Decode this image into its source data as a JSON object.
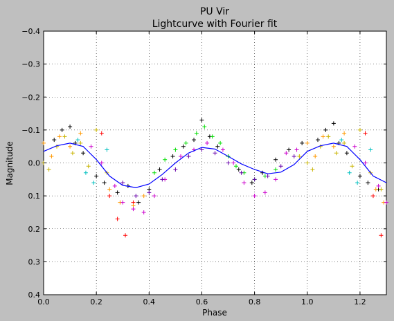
{
  "chart_data": {
    "type": "scatter",
    "title": "PU Vir",
    "subtitle": "Lightcurve with Fourier fit",
    "xlabel": "Phase",
    "ylabel": "Magnitude",
    "xlim": [
      0.0,
      1.3
    ],
    "ylim": [
      -0.4,
      0.4
    ],
    "y_inverted": true,
    "x_ticks": [
      0.0,
      0.2,
      0.4,
      0.6,
      0.8,
      1.0,
      1.2
    ],
    "x_tick_labels": [
      "0.0",
      "0.2",
      "0.4",
      "0.6",
      "0.8",
      "1.0",
      "1.2"
    ],
    "y_ticks": [
      -0.4,
      -0.3,
      -0.2,
      -0.1,
      0.0,
      0.1,
      0.2,
      0.3,
      0.4
    ],
    "y_tick_labels": [
      "−0.4",
      "−0.3",
      "−0.2",
      "−0.1",
      "0.0",
      "0.1",
      "0.2",
      "0.3",
      "0.4"
    ],
    "grid": true,
    "marker": "+",
    "series_colors": [
      "#000000",
      "#ff0000",
      "#00c0c0",
      "#ff9900",
      "#cc00cc",
      "#c8b400",
      "#00dd00",
      "#6600aa"
    ],
    "series": [
      {
        "color": "#000000",
        "x": [
          0.04,
          0.07,
          0.1,
          0.12,
          0.15,
          0.2,
          0.23,
          0.28,
          0.32,
          0.36,
          0.4,
          0.44,
          0.49,
          0.53,
          0.57,
          0.6,
          0.63,
          0.66,
          0.7,
          0.74,
          0.79,
          0.83,
          0.88,
          0.93,
          0.98,
          1.04,
          1.07,
          1.1,
          1.12,
          1.15,
          1.2,
          1.23,
          1.27
        ],
        "y": [
          -0.07,
          -0.1,
          -0.11,
          -0.06,
          -0.03,
          0.04,
          0.06,
          0.09,
          0.07,
          0.12,
          0.08,
          0.02,
          -0.02,
          -0.05,
          -0.07,
          -0.13,
          -0.08,
          -0.05,
          -0.02,
          0.02,
          0.06,
          0.03,
          -0.01,
          -0.04,
          -0.06,
          -0.07,
          -0.1,
          -0.12,
          -0.06,
          -0.03,
          0.04,
          0.06,
          0.08
        ]
      },
      {
        "color": "#ff0000",
        "x": [
          0.22,
          0.25,
          0.28,
          0.31,
          0.34,
          1.22,
          1.25,
          1.28
        ],
        "y": [
          -0.09,
          0.1,
          0.17,
          0.22,
          0.12,
          -0.09,
          0.1,
          0.22
        ]
      },
      {
        "color": "#00c0c0",
        "x": [
          0.13,
          0.16,
          0.19,
          0.24,
          1.13,
          1.16,
          1.19,
          1.24
        ],
        "y": [
          -0.07,
          0.03,
          0.06,
          -0.04,
          -0.07,
          0.03,
          0.06,
          -0.04
        ]
      },
      {
        "color": "#ff9900",
        "x": [
          0.0,
          0.03,
          0.06,
          0.1,
          0.14,
          0.25,
          0.29,
          0.34,
          0.38,
          1.0,
          1.03,
          1.06,
          1.1,
          1.14,
          1.26,
          1.29
        ],
        "y": [
          -0.06,
          -0.02,
          -0.08,
          -0.05,
          -0.09,
          0.08,
          0.12,
          0.13,
          0.1,
          -0.06,
          -0.02,
          -0.08,
          -0.05,
          -0.09,
          0.08,
          0.12
        ]
      },
      {
        "color": "#cc00cc",
        "x": [
          0.18,
          0.22,
          0.27,
          0.3,
          0.34,
          0.38,
          0.42,
          0.46,
          0.52,
          0.57,
          0.62,
          0.68,
          0.72,
          0.76,
          0.8,
          0.84,
          0.88,
          0.92,
          0.96,
          1.18,
          1.22,
          1.27,
          1.3
        ],
        "y": [
          -0.05,
          0.0,
          0.07,
          0.12,
          0.14,
          0.15,
          0.1,
          0.05,
          -0.02,
          -0.04,
          -0.06,
          -0.04,
          0.0,
          0.06,
          0.1,
          0.09,
          0.05,
          -0.03,
          -0.04,
          -0.05,
          0.0,
          0.07,
          0.12
        ]
      },
      {
        "color": "#c8b400",
        "x": [
          0.0,
          0.02,
          0.05,
          0.08,
          0.11,
          0.14,
          0.17,
          0.2,
          0.24,
          0.97,
          1.0,
          1.02,
          1.05,
          1.08,
          1.11,
          1.14,
          1.17,
          1.2,
          1.24,
          1.28
        ],
        "y": [
          0.0,
          0.02,
          -0.05,
          -0.08,
          -0.03,
          -0.06,
          0.01,
          -0.1,
          0.03,
          -0.02,
          0.0,
          0.02,
          -0.05,
          -0.08,
          -0.03,
          -0.06,
          0.01,
          -0.1,
          0.03,
          0.08
        ]
      },
      {
        "color": "#00dd00",
        "x": [
          0.42,
          0.46,
          0.5,
          0.54,
          0.58,
          0.61,
          0.64,
          0.67,
          0.7,
          0.73,
          0.76,
          0.8,
          0.84,
          0.88
        ],
        "y": [
          0.03,
          -0.01,
          -0.04,
          -0.06,
          -0.09,
          -0.11,
          -0.08,
          -0.06,
          -0.02,
          0.01,
          0.03,
          0.05,
          0.04,
          0.02
        ]
      },
      {
        "color": "#6600aa",
        "x": [
          0.3,
          0.35,
          0.4,
          0.45,
          0.5,
          0.55,
          0.6,
          0.65,
          0.7,
          0.75,
          0.8,
          0.85,
          0.9,
          0.95
        ],
        "y": [
          0.06,
          0.1,
          0.09,
          0.05,
          0.02,
          -0.02,
          -0.04,
          -0.03,
          0.0,
          0.03,
          0.05,
          0.04,
          0.01,
          -0.02
        ]
      }
    ],
    "fit": {
      "color": "#0000ff",
      "x": [
        0.0,
        0.05,
        0.1,
        0.15,
        0.2,
        0.25,
        0.3,
        0.35,
        0.4,
        0.45,
        0.5,
        0.55,
        0.6,
        0.65,
        0.7,
        0.75,
        0.8,
        0.85,
        0.9,
        0.95,
        1.0,
        1.05,
        1.1,
        1.15,
        1.2,
        1.25,
        1.3
      ],
      "y": [
        -0.035,
        -0.052,
        -0.06,
        -0.05,
        -0.01,
        0.04,
        0.068,
        0.075,
        0.064,
        0.035,
        0.0,
        -0.03,
        -0.047,
        -0.042,
        -0.02,
        0.003,
        0.02,
        0.033,
        0.028,
        0.005,
        -0.035,
        -0.052,
        -0.06,
        -0.05,
        -0.01,
        0.04,
        0.06
      ]
    }
  }
}
